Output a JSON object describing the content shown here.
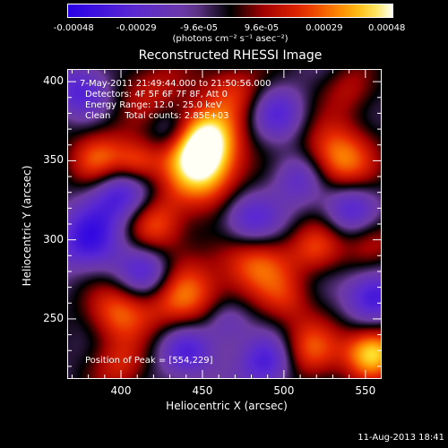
{
  "colorbar": {
    "ticks": [
      "-0.00048",
      "-0.00029",
      "-9.6e-05",
      "9.6e-05",
      "0.00029",
      "0.00048"
    ],
    "units": "(photons cm⁻² s⁻¹ asec⁻²)"
  },
  "title": "Reconstructed RHESSI Image",
  "overlay": {
    "time": "7-May-2011 21:49:44.000 to 21:50:56.000",
    "detectors": "Detectors: 4F 5F 6F 7F 8F, Att 0",
    "energy": "Energy Range: 12.0 - 25.0 keV",
    "clean": "Clean     Total counts: 2.85E+03",
    "peak": "Position of Peak = [554,229]"
  },
  "axes": {
    "xlabel": "Heliocentric X (arcsec)",
    "ylabel": "Heliocentric Y (arcsec)",
    "xticks": [
      "400",
      "450",
      "500",
      "550"
    ],
    "yticks": [
      "400",
      "350",
      "300",
      "250"
    ]
  },
  "timestamp": "11-Aug-2013 18:41",
  "chart_data": {
    "type": "heatmap",
    "title": "Reconstructed RHESSI Image",
    "xlabel": "Heliocentric X (arcsec)",
    "ylabel": "Heliocentric Y (arcsec)",
    "xlim": [
      367,
      560
    ],
    "ylim": [
      212,
      408
    ],
    "zlim": [
      -0.00048,
      0.00048
    ],
    "peak_position": [
      554,
      229
    ],
    "blobs": [
      {
        "x": 450,
        "y": 345,
        "r": 18,
        "v": 0.00046
      },
      {
        "x": 450,
        "y": 365,
        "r": 14,
        "v": 0.0004
      },
      {
        "x": 532,
        "y": 351,
        "r": 16,
        "v": 0.0004
      },
      {
        "x": 554,
        "y": 229,
        "r": 12,
        "v": 0.00048
      },
      {
        "x": 515,
        "y": 230,
        "r": 14,
        "v": 0.0003
      },
      {
        "x": 388,
        "y": 350,
        "r": 14,
        "v": 0.00034
      },
      {
        "x": 410,
        "y": 348,
        "r": 10,
        "v": 0.00028
      },
      {
        "x": 420,
        "y": 310,
        "r": 14,
        "v": 0.0003
      },
      {
        "x": 480,
        "y": 286,
        "r": 16,
        "v": 0.00034
      },
      {
        "x": 520,
        "y": 295,
        "r": 12,
        "v": 0.00026
      },
      {
        "x": 437,
        "y": 263,
        "r": 16,
        "v": 0.00034
      },
      {
        "x": 397,
        "y": 255,
        "r": 14,
        "v": 0.0003
      },
      {
        "x": 400,
        "y": 220,
        "r": 12,
        "v": 0.00022
      },
      {
        "x": 500,
        "y": 262,
        "r": 12,
        "v": 0.00018
      },
      {
        "x": 553,
        "y": 300,
        "r": 12,
        "v": 0.0002
      },
      {
        "x": 470,
        "y": 395,
        "r": 14,
        "v": 0.00022
      },
      {
        "x": 420,
        "y": 395,
        "r": 16,
        "v": 0.00018
      },
      {
        "x": 540,
        "y": 395,
        "r": 12,
        "v": 0.00016
      },
      {
        "x": 400,
        "y": 330,
        "r": 14,
        "v": -0.0004
      },
      {
        "x": 380,
        "y": 300,
        "r": 14,
        "v": -0.00034
      },
      {
        "x": 415,
        "y": 280,
        "r": 12,
        "v": -0.0003
      },
      {
        "x": 478,
        "y": 312,
        "r": 13,
        "v": -0.00034
      },
      {
        "x": 540,
        "y": 320,
        "r": 12,
        "v": -0.0003
      },
      {
        "x": 555,
        "y": 265,
        "r": 12,
        "v": -0.00034
      },
      {
        "x": 490,
        "y": 223,
        "r": 12,
        "v": -0.00034
      },
      {
        "x": 440,
        "y": 230,
        "r": 12,
        "v": -0.0003
      },
      {
        "x": 510,
        "y": 340,
        "r": 12,
        "v": -0.00028
      },
      {
        "x": 495,
        "y": 380,
        "r": 12,
        "v": -0.00024
      },
      {
        "x": 375,
        "y": 395,
        "r": 12,
        "v": -0.00026
      },
      {
        "x": 430,
        "y": 370,
        "r": 10,
        "v": -0.0002
      },
      {
        "x": 465,
        "y": 248,
        "r": 10,
        "v": -0.0002
      }
    ]
  }
}
